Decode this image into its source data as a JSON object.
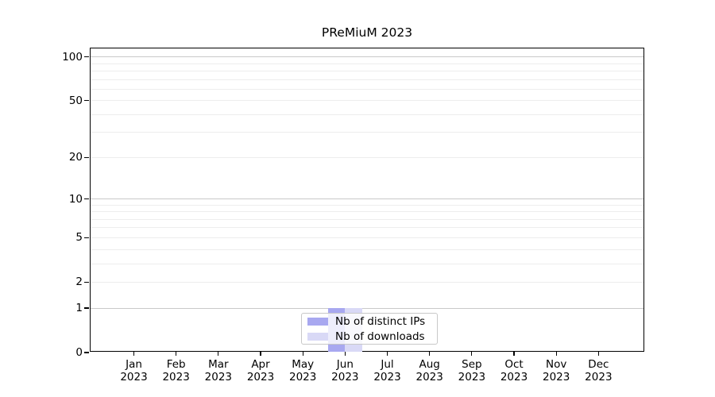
{
  "chart_data": {
    "type": "bar",
    "title": "PReMiuM 2023",
    "categories": [
      "Jan",
      "Feb",
      "Mar",
      "Apr",
      "May",
      "Jun",
      "Jul",
      "Aug",
      "Sep",
      "Oct",
      "Nov",
      "Dec"
    ],
    "category_year": "2023",
    "series": [
      {
        "name": "Nb of distinct IPs",
        "slug": "distinct-ips",
        "color": "#a8a8f0",
        "values": [
          0,
          0,
          0,
          0,
          0,
          1,
          0,
          0,
          0,
          0,
          0,
          0
        ]
      },
      {
        "name": "Nb of downloads",
        "slug": "downloads",
        "color": "#d9d9f6",
        "values": [
          0,
          0,
          0,
          0,
          0,
          1,
          0,
          0,
          0,
          0,
          0,
          0
        ]
      }
    ],
    "xlabel": "",
    "ylabel": "",
    "yscale": "log1p",
    "ylim": [
      0,
      100
    ],
    "yticks": [
      0,
      1,
      2,
      5,
      10,
      20,
      50,
      100
    ],
    "major_gridlines": [
      1,
      10,
      100
    ],
    "minor_gridlines": [
      2,
      3,
      4,
      5,
      6,
      7,
      8,
      9,
      20,
      30,
      40,
      50,
      60,
      70,
      80,
      90
    ],
    "grid_on": true,
    "legend_position": "lower center",
    "colors": {
      "grid_major": "#c9c9c9",
      "grid_minor": "#ededed",
      "axis": "#000000",
      "legend_border": "#c8c8c8"
    }
  }
}
